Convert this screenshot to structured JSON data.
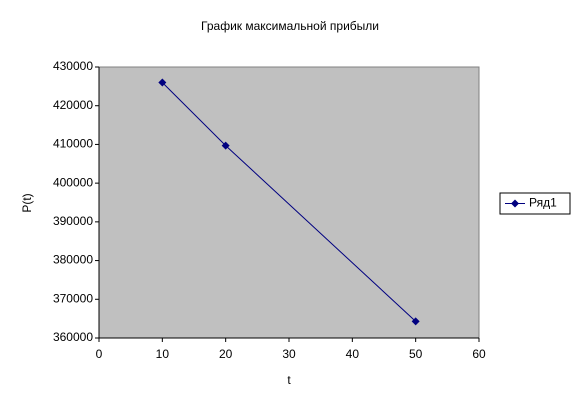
{
  "chart_data": {
    "type": "line",
    "title": "График максимальной прибыли",
    "x_label": "t",
    "y_label": "P(t)",
    "x": [
      10,
      20,
      50
    ],
    "series": [
      {
        "name": "Ряд1",
        "color": "#000080",
        "values": [
          426000,
          409700,
          364300
        ]
      }
    ],
    "xlim": [
      0,
      60
    ],
    "xticks": [
      0,
      10,
      20,
      30,
      40,
      50,
      60
    ],
    "ylim": [
      360000,
      430000
    ],
    "yticks": [
      360000,
      370000,
      380000,
      390000,
      400000,
      410000,
      420000,
      430000
    ],
    "grid": false,
    "legend": "right",
    "plot_background": "#c0c0c0"
  }
}
